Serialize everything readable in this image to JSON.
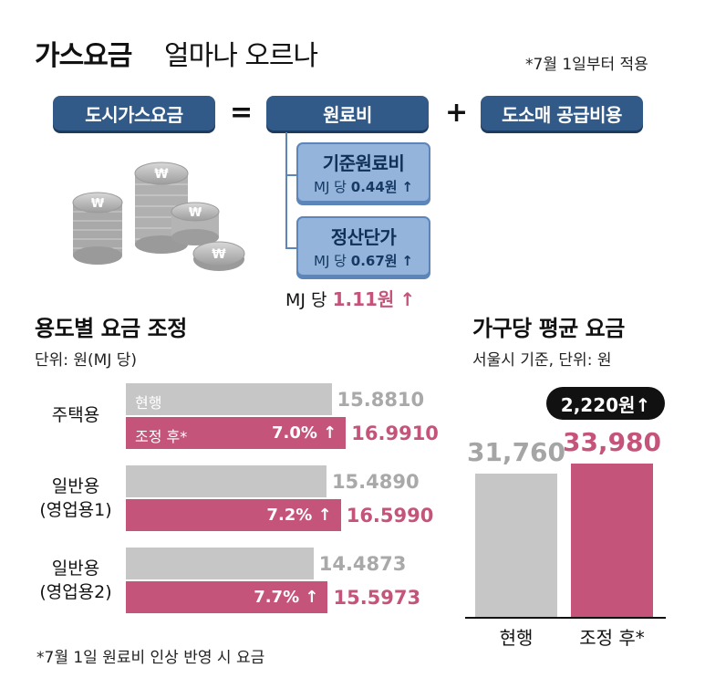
{
  "title_bold": "가스요금",
  "title_light": "얼마나 오르나",
  "applied_note": "*7월 1일부터 적용",
  "formula": {
    "city_gas": "도시가스요금",
    "equals": "=",
    "raw_cost": "원료비",
    "plus": "+",
    "wholesale": "도소매 공급비용",
    "base_raw": {
      "label": "기준원료비",
      "prefix": "MJ 당",
      "value": "0.44원",
      "arrow": "↑"
    },
    "settle": {
      "label": "정산단가",
      "prefix": "MJ 당",
      "value": "0.67원",
      "arrow": "↑"
    },
    "total_prefix": "MJ 당",
    "total_value": "1.11원",
    "total_arrow": "↑"
  },
  "coin_icon": "coin-stack-icon",
  "accent_color": "#c4547a",
  "current_color": "#c6c6c6",
  "chart_data": [
    {
      "type": "bar",
      "title": "용도별 요금 조정",
      "unit": "단위: 원(MJ 당)",
      "legend_current": "현행",
      "legend_adjusted": "조정 후*",
      "categories": [
        {
          "line1": "주택용",
          "line2": ""
        },
        {
          "line1": "일반용",
          "line2": "(영업용1)"
        },
        {
          "line1": "일반용",
          "line2": "(영업용2)"
        }
      ],
      "series": [
        {
          "name": "현행",
          "values": [
            15.881,
            15.489,
            14.4873
          ],
          "labels": [
            "15.8810",
            "15.4890",
            "14.4873"
          ]
        },
        {
          "name": "조정 후*",
          "values": [
            16.991,
            16.599,
            15.5973
          ],
          "labels": [
            "16.9910",
            "16.5990",
            "15.5973"
          ]
        }
      ],
      "pct_changes": [
        "7.0%",
        "7.2%",
        "7.7%"
      ],
      "arrow": "↑",
      "footnote": "*7월 1일 원료비 인상 반영 시 요금"
    },
    {
      "type": "bar",
      "title": "가구당 평균 요금",
      "unit": "서울시 기준, 단위: 원",
      "categories": [
        "현행",
        "조정 후*"
      ],
      "values": [
        31760,
        33980
      ],
      "labels": [
        "31,760",
        "33,980"
      ],
      "increase_label": "2,220원",
      "arrow": "↑"
    }
  ]
}
